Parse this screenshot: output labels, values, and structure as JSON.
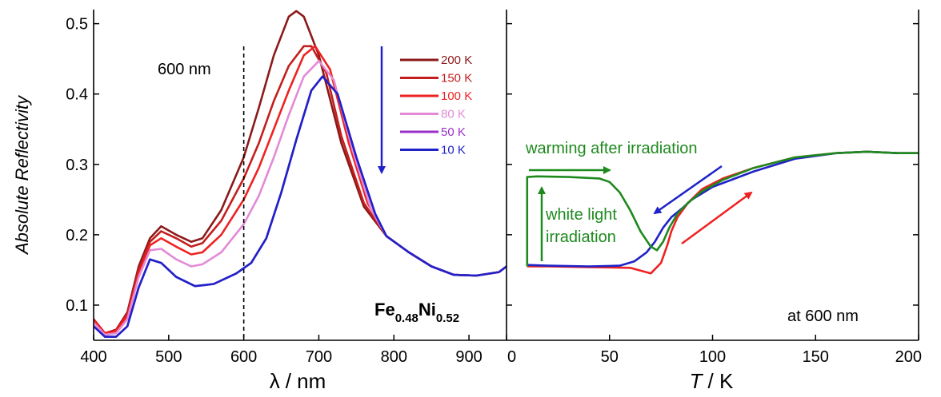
{
  "chart_data": [
    {
      "type": "line",
      "xlabel_symbol": "λ",
      "xlabel_unit": "/ nm",
      "ylabel": "Absolute Reflectivity",
      "xlim": [
        400,
        950
      ],
      "ylim": [
        0.05,
        0.52
      ],
      "xticks": [
        400,
        500,
        600,
        700,
        800,
        900
      ],
      "xtick_labels": [
        "400",
        "500",
        "600",
        "700",
        "800",
        "900"
      ],
      "yticks": [
        0.1,
        0.2,
        0.3,
        0.4,
        0.5
      ],
      "ytick_labels": [
        "0.1",
        "0.2",
        "0.3",
        "0.4",
        "0.5"
      ],
      "vline": {
        "x": 600,
        "label": "600 nm"
      },
      "sample": {
        "base1": "Fe",
        "sub1": "0.48",
        "base2": "Ni",
        "sub2": "0.52"
      },
      "legend_position": "top-right",
      "series": [
        {
          "name": "200 K",
          "color": "#8b1a1a",
          "x": [
            400,
            415,
            430,
            445,
            460,
            475,
            490,
            510,
            530,
            545,
            570,
            600,
            620,
            640,
            660,
            670,
            680,
            700,
            730,
            760,
            790,
            820,
            850,
            880,
            910,
            940,
            950
          ],
          "y": [
            0.08,
            0.06,
            0.065,
            0.09,
            0.155,
            0.195,
            0.212,
            0.2,
            0.19,
            0.195,
            0.235,
            0.31,
            0.38,
            0.455,
            0.51,
            0.518,
            0.51,
            0.455,
            0.33,
            0.24,
            0.198,
            0.175,
            0.155,
            0.143,
            0.142,
            0.147,
            0.155
          ]
        },
        {
          "name": "150 K",
          "color": "#c41e1e",
          "x": [
            400,
            415,
            430,
            445,
            460,
            475,
            490,
            510,
            530,
            545,
            570,
            600,
            620,
            640,
            660,
            680,
            690,
            710,
            730,
            760,
            790,
            820,
            850,
            880,
            910,
            940,
            950
          ],
          "y": [
            0.08,
            0.06,
            0.065,
            0.088,
            0.15,
            0.19,
            0.205,
            0.195,
            0.183,
            0.188,
            0.22,
            0.28,
            0.33,
            0.39,
            0.44,
            0.468,
            0.468,
            0.43,
            0.34,
            0.245,
            0.198,
            0.175,
            0.155,
            0.143,
            0.142,
            0.147,
            0.155
          ]
        },
        {
          "name": "100 K",
          "color": "#ee2222",
          "x": [
            400,
            415,
            430,
            445,
            460,
            475,
            490,
            510,
            530,
            545,
            570,
            600,
            620,
            640,
            660,
            680,
            695,
            715,
            740,
            765,
            790,
            820,
            850,
            880,
            910,
            940,
            950
          ],
          "y": [
            0.08,
            0.06,
            0.063,
            0.085,
            0.145,
            0.185,
            0.195,
            0.183,
            0.172,
            0.175,
            0.2,
            0.25,
            0.295,
            0.35,
            0.405,
            0.455,
            0.468,
            0.435,
            0.33,
            0.245,
            0.198,
            0.175,
            0.155,
            0.143,
            0.142,
            0.147,
            0.155
          ]
        },
        {
          "name": "80 K",
          "color": "#e38ad6",
          "x": [
            400,
            415,
            430,
            445,
            460,
            475,
            490,
            510,
            530,
            545,
            570,
            600,
            620,
            640,
            660,
            680,
            700,
            720,
            745,
            770,
            790,
            820,
            850,
            880,
            910,
            940,
            950
          ],
          "y": [
            0.075,
            0.058,
            0.06,
            0.08,
            0.14,
            0.178,
            0.18,
            0.165,
            0.155,
            0.158,
            0.175,
            0.215,
            0.255,
            0.31,
            0.37,
            0.425,
            0.447,
            0.42,
            0.32,
            0.235,
            0.198,
            0.175,
            0.155,
            0.143,
            0.142,
            0.147,
            0.155
          ]
        },
        {
          "name": "50 K",
          "color": "#9b30c8",
          "x": [
            400,
            415,
            430,
            445,
            460,
            475,
            490,
            510,
            535,
            560,
            590,
            610,
            630,
            650,
            670,
            690,
            705,
            725,
            750,
            775,
            790,
            820,
            850,
            880,
            910,
            940,
            950
          ],
          "y": [
            0.07,
            0.055,
            0.055,
            0.07,
            0.125,
            0.165,
            0.16,
            0.14,
            0.127,
            0.13,
            0.145,
            0.16,
            0.195,
            0.26,
            0.335,
            0.405,
            0.425,
            0.4,
            0.31,
            0.23,
            0.198,
            0.175,
            0.155,
            0.143,
            0.142,
            0.147,
            0.155
          ]
        },
        {
          "name": "10 K",
          "color": "#1f22c8",
          "x": [
            400,
            415,
            430,
            445,
            460,
            475,
            490,
            510,
            535,
            560,
            590,
            610,
            630,
            650,
            670,
            690,
            705,
            725,
            750,
            775,
            790,
            820,
            850,
            880,
            910,
            940,
            950
          ],
          "y": [
            0.07,
            0.055,
            0.055,
            0.07,
            0.125,
            0.165,
            0.16,
            0.14,
            0.127,
            0.13,
            0.145,
            0.16,
            0.195,
            0.26,
            0.335,
            0.405,
            0.425,
            0.4,
            0.31,
            0.23,
            0.198,
            0.175,
            0.155,
            0.143,
            0.142,
            0.147,
            0.155
          ]
        }
      ]
    },
    {
      "type": "line",
      "xlabel_symbol": "T",
      "xlabel_unit": "/ K",
      "xlim": [
        0,
        200
      ],
      "ylim": [
        0.05,
        0.52
      ],
      "xticks": [
        0,
        50,
        100,
        150,
        200
      ],
      "xtick_labels": [
        "0",
        "50",
        "100",
        "150",
        "200"
      ],
      "annotation": "at 600 nm",
      "labels": {
        "warming": "warming after irradiation",
        "white_light_line1": "white light",
        "white_light_line2": "irradiation"
      },
      "colors": {
        "green": "#1e8a1e",
        "blue": "#1f22c8",
        "red": "#ee2222"
      },
      "series": [
        {
          "name": "",
          "color": "#ee2222",
          "x": [
            10,
            20,
            40,
            60,
            70,
            75,
            78,
            80,
            83,
            88,
            95,
            105,
            120,
            140,
            160,
            175,
            190,
            200
          ],
          "y": [
            0.155,
            0.155,
            0.154,
            0.153,
            0.145,
            0.16,
            0.185,
            0.205,
            0.225,
            0.245,
            0.265,
            0.28,
            0.295,
            0.31,
            0.316,
            0.318,
            0.316,
            0.316
          ]
        },
        {
          "name": "",
          "color": "#1f22c8",
          "x": [
            10,
            20,
            40,
            55,
            62,
            68,
            72,
            76,
            80,
            85,
            90,
            100,
            120,
            140,
            160,
            175,
            190,
            200
          ],
          "y": [
            0.157,
            0.156,
            0.155,
            0.156,
            0.162,
            0.175,
            0.19,
            0.21,
            0.225,
            0.237,
            0.25,
            0.268,
            0.29,
            0.308,
            0.316,
            0.318,
            0.316,
            0.316
          ]
        },
        {
          "name": "",
          "color": "#1e8a1e",
          "x": [
            10,
            10,
            15,
            30,
            45,
            50,
            55,
            60,
            65,
            70,
            73,
            76,
            79,
            83,
            88,
            95,
            105,
            120,
            140,
            160,
            175,
            190,
            200
          ],
          "y": [
            0.155,
            0.282,
            0.283,
            0.282,
            0.28,
            0.275,
            0.26,
            0.235,
            0.205,
            0.183,
            0.178,
            0.19,
            0.21,
            0.23,
            0.245,
            0.262,
            0.278,
            0.295,
            0.31,
            0.316,
            0.318,
            0.316,
            0.316
          ]
        }
      ]
    }
  ]
}
